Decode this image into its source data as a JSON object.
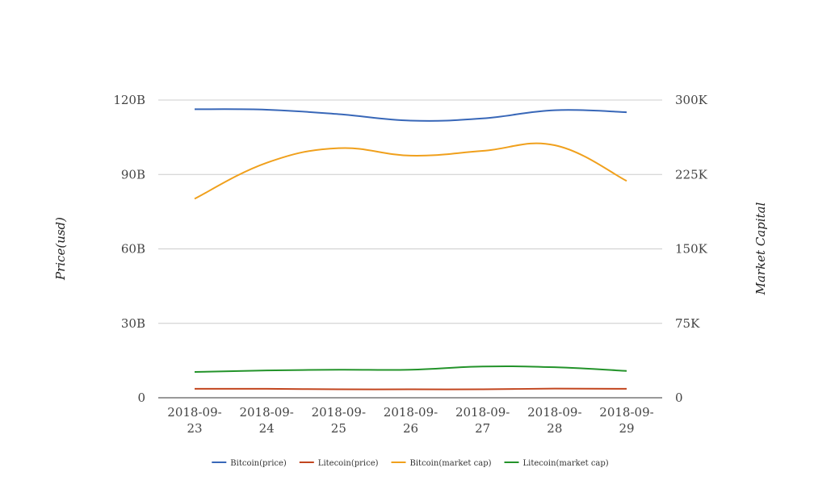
{
  "chart_data": {
    "type": "line",
    "title": "",
    "xlabel": "",
    "ylabel": "Price(usd)",
    "y2label": "Market Capital",
    "categories": [
      "2018-09-23",
      "2018-09-24",
      "2018-09-25",
      "2018-09-26",
      "2018-09-27",
      "2018-09-28",
      "2018-09-29"
    ],
    "category_lines": [
      [
        "2018-09-",
        "23"
      ],
      [
        "2018-09-",
        "24"
      ],
      [
        "2018-09-",
        "25"
      ],
      [
        "2018-09-",
        "26"
      ],
      [
        "2018-09-",
        "27"
      ],
      [
        "2018-09-",
        "28"
      ],
      [
        "2018-09-",
        "29"
      ]
    ],
    "ylim": [
      0,
      120
    ],
    "y2lim": [
      0,
      300
    ],
    "yticks": [
      0,
      30,
      60,
      90,
      120
    ],
    "ytick_labels": [
      "0",
      "30B",
      "60B",
      "90B",
      "120B"
    ],
    "y2ticks": [
      0,
      75,
      150,
      225,
      300
    ],
    "y2tick_labels": [
      "0",
      "75K",
      "150K",
      "225K",
      "300K"
    ],
    "grid": true,
    "smooth": true,
    "legend_position": "bottom-center",
    "series": [
      {
        "name": "Bitcoin(price)",
        "color": "#3867b8",
        "axis": "left",
        "values": [
          116.3,
          116.1,
          114.3,
          111.7,
          112.6,
          115.9,
          115.1
        ]
      },
      {
        "name": "Litecoin(price)",
        "color": "#c2461f",
        "axis": "left",
        "values": [
          3.6,
          3.6,
          3.4,
          3.4,
          3.4,
          3.7,
          3.6
        ]
      },
      {
        "name": "Bitcoin(market cap)",
        "color": "#f0a01c",
        "axis": "left",
        "values": [
          80.2,
          94.7,
          100.6,
          97.6,
          99.5,
          101.8,
          87.4
        ]
      },
      {
        "name": "Litecoin(market cap)",
        "color": "#23932a",
        "axis": "left",
        "values": [
          10.4,
          11.0,
          11.3,
          11.3,
          12.6,
          12.3,
          10.8
        ]
      }
    ]
  }
}
